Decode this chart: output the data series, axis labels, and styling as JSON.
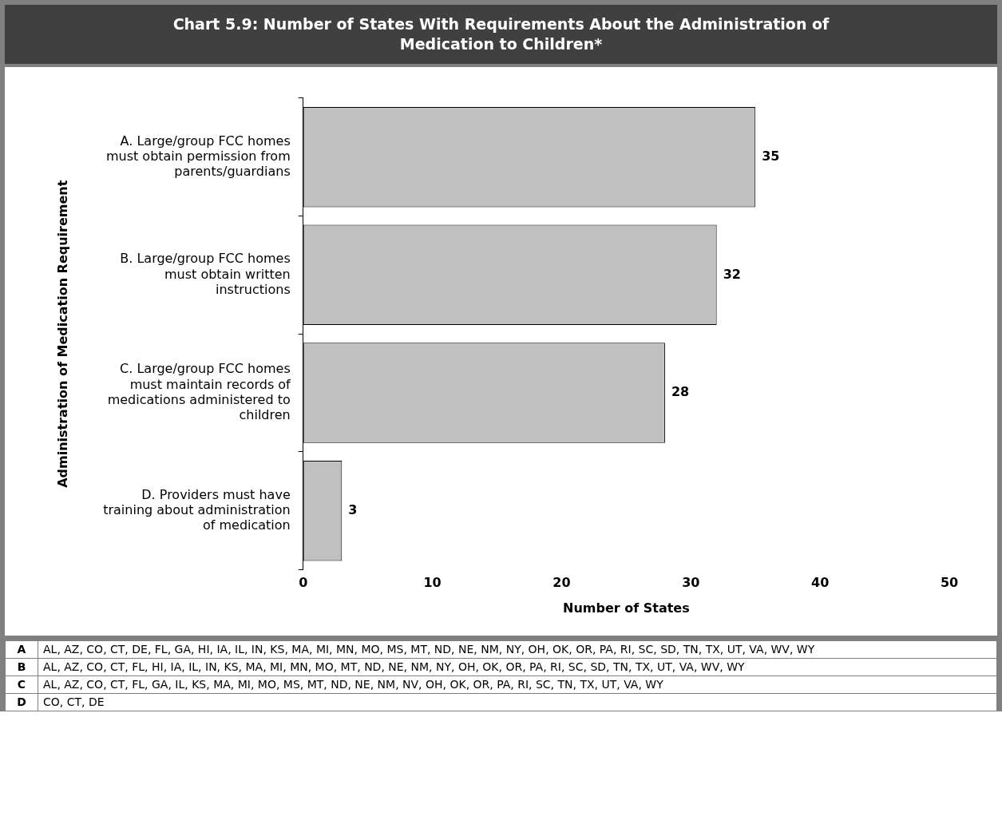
{
  "chart_data": {
    "type": "bar",
    "orientation": "horizontal",
    "title": "Chart 5.9: Number of States With Requirements About the Administration of Medication to Children*",
    "categories": [
      "A. Large/group FCC homes must obtain permission from parents/guardians",
      "B. Large/group FCC homes must obtain written instructions",
      "C. Large/group FCC homes must maintain records of medications administered to children",
      "D. Providers must have training about administration of medication"
    ],
    "values": [
      35,
      32,
      28,
      3
    ],
    "color": "#c0c0c0",
    "xlim": [
      0,
      50
    ],
    "xticks": [
      0,
      10,
      20,
      30,
      40,
      50
    ],
    "xlabel": "Number of States",
    "ylabel": "Administration of Medication Requirement",
    "data_labels": true,
    "grid": false,
    "legend": false,
    "annotations": [
      "A",
      "AL, AZ, CO, CT, DE, FL, GA, HI, IA, IL, IN, KS, MA, MI, MN, MO, MS, MT, ND, NE, NM, NY, OH, OK, OR, PA, RI, SC, SD, TN, TX, UT, VA, WV, WY",
      "B",
      "AL, AZ, CO, CT, FL, HI, IA, IL, IN, KS, MA, MI, MN, MO, MT, ND, NE, NM, NY, OH, OK, OR, PA, RI, SC, SD, TN, TX, UT, VA, WV, WY",
      "C",
      "AL, AZ, CO, CT, FL, GA, IL, KS, MA, MI, MO, MS, MT, ND, NE, NM, NV, OH, OK, OR, PA, RI, SC, TN, TX, UT, VA, WY",
      "D",
      "CO, CT, DE"
    ]
  }
}
